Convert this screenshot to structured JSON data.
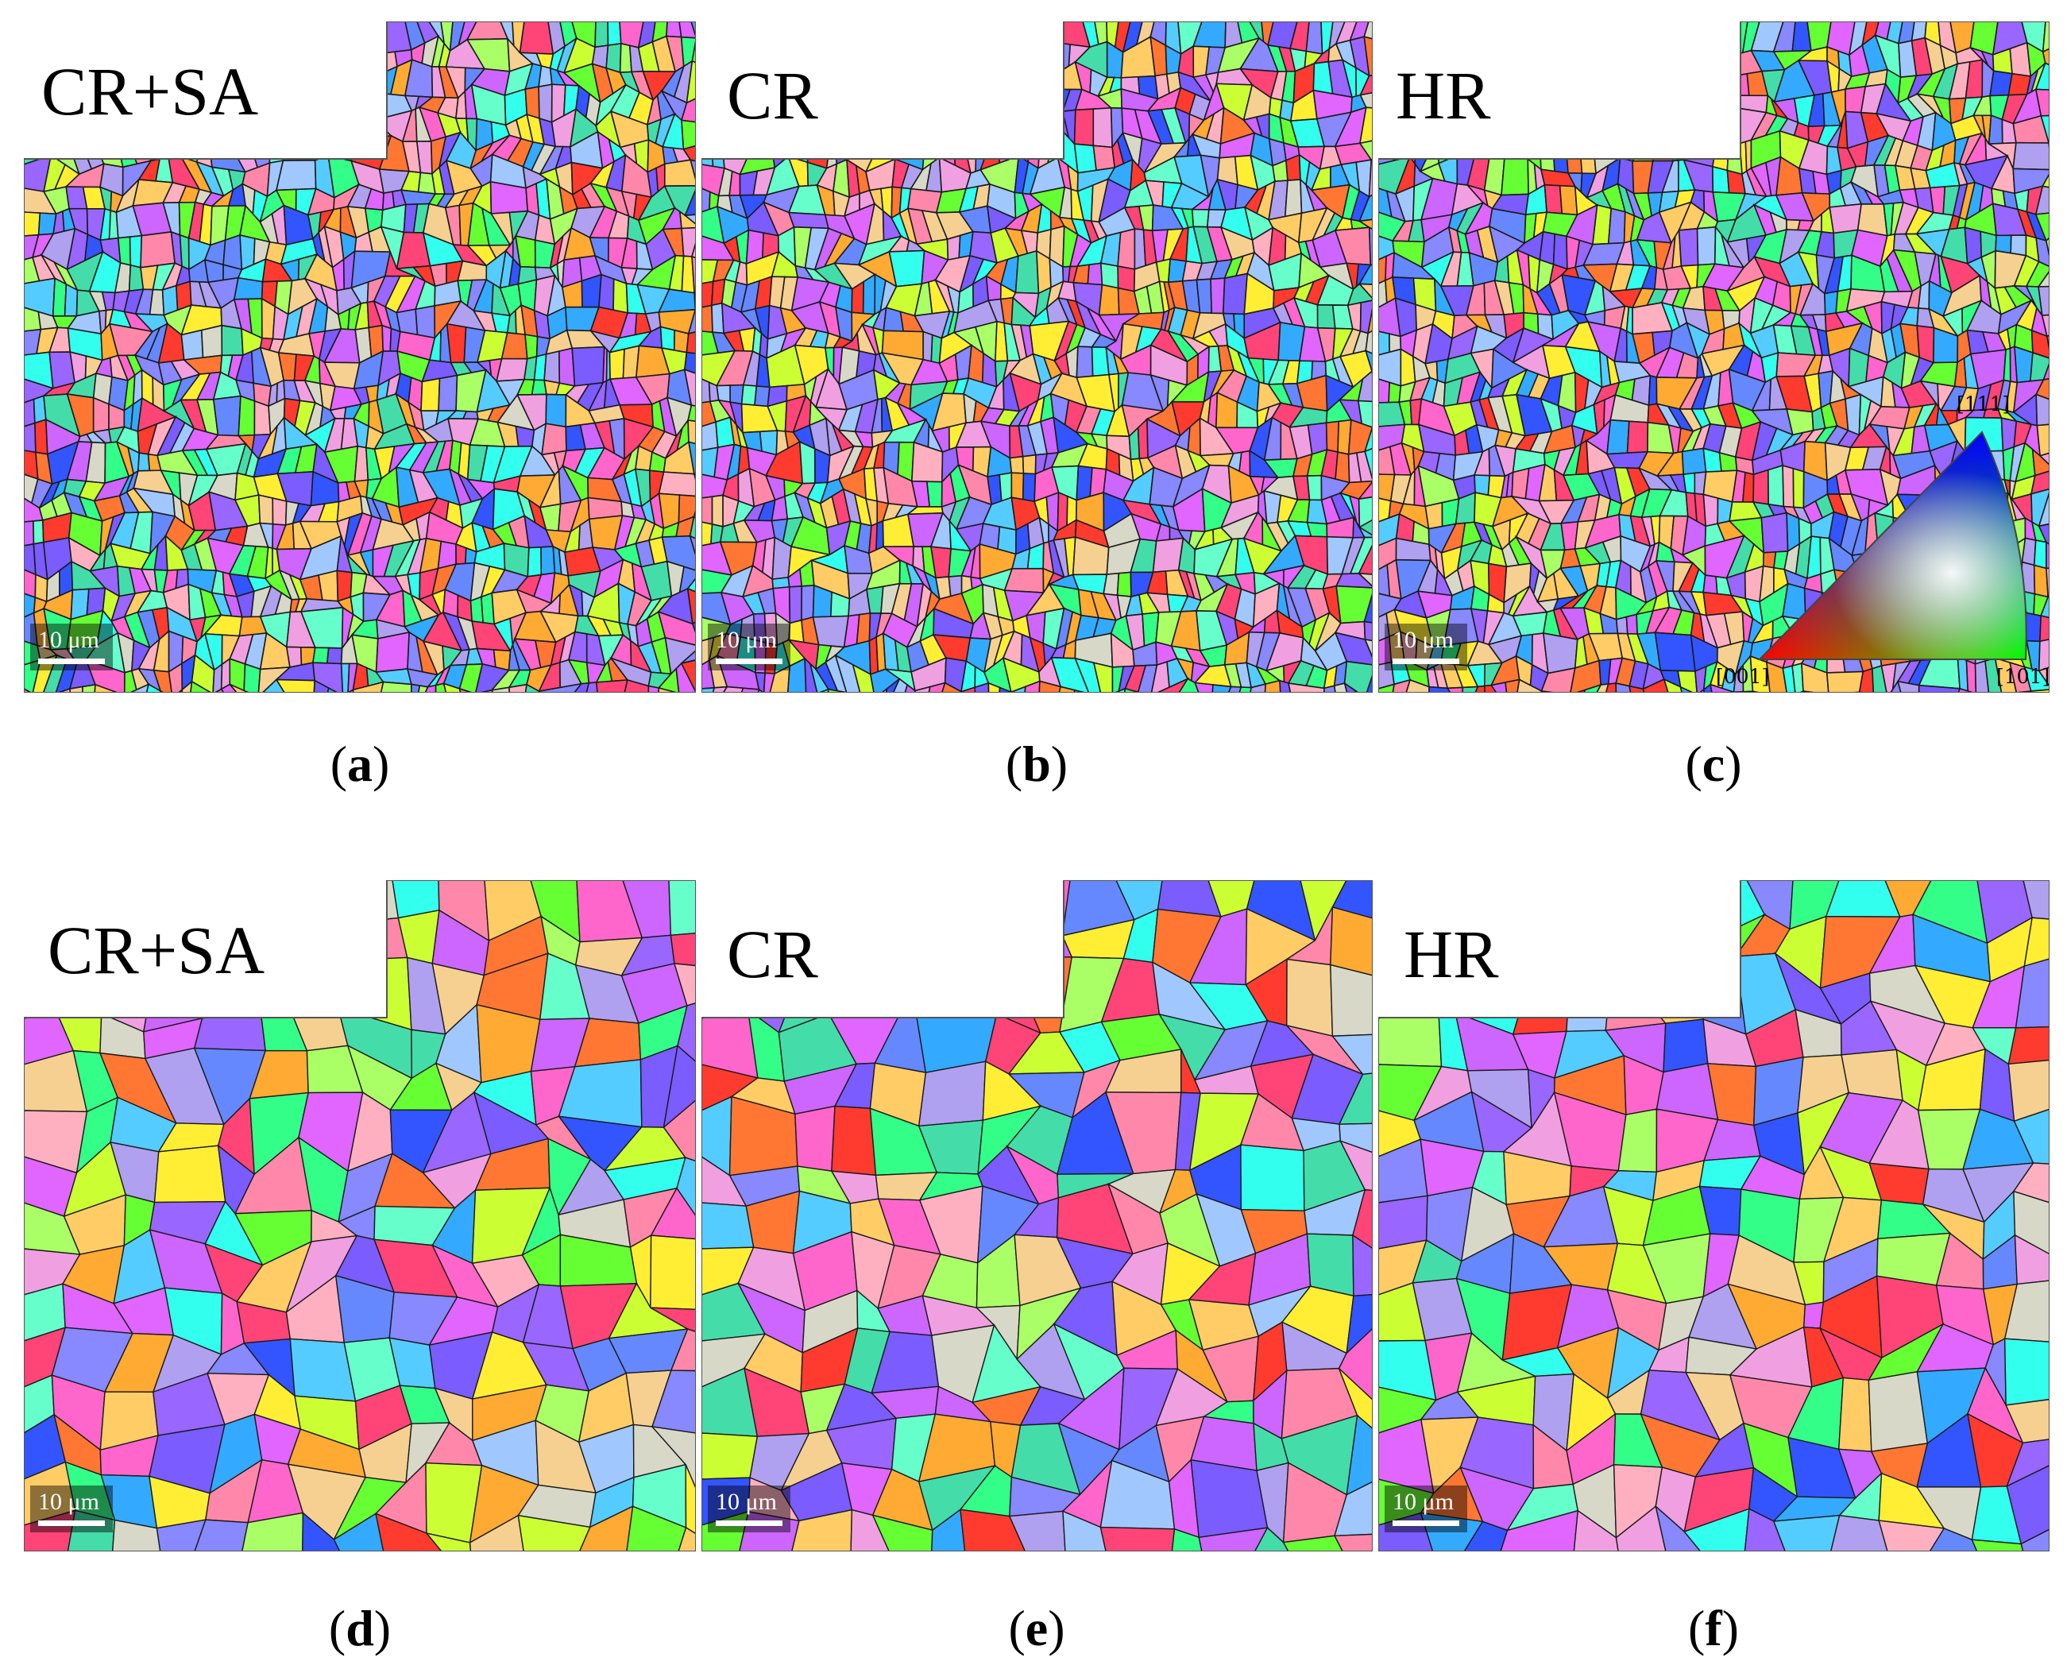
{
  "panels": [
    {
      "id": "a",
      "label": "CR+SA",
      "caption": "a",
      "scale": "10 μm"
    },
    {
      "id": "b",
      "label": "CR",
      "caption": "b",
      "scale": "10 μm"
    },
    {
      "id": "c",
      "label": "HR",
      "caption": "c",
      "scale": "10 μm"
    },
    {
      "id": "d",
      "label": "CR+SA",
      "caption": "d",
      "scale": "10 μm"
    },
    {
      "id": "e",
      "label": "CR",
      "caption": "e",
      "scale": "10 μm"
    },
    {
      "id": "f",
      "label": "HR",
      "caption": "f",
      "scale": "10 μm"
    }
  ],
  "ipf_legend": {
    "top": "[111]",
    "left": "[001]",
    "right": "[101]"
  },
  "palette": [
    "#ff3b30",
    "#ff66cc",
    "#cc66ff",
    "#7a5cff",
    "#3355ff",
    "#33aaff",
    "#33ffee",
    "#33ff88",
    "#66ff33",
    "#ccff33",
    "#ffee33",
    "#ffaa33",
    "#ff7733",
    "#ff4477",
    "#e066ff",
    "#9966ff",
    "#6688ff",
    "#55ccff",
    "#66ffcc",
    "#aaff66",
    "#f0a0e0",
    "#b0a0f0",
    "#a0c8ff",
    "#f5d090",
    "#ffb0c0",
    "#d8d8c8",
    "#8888ff",
    "#ff88aa",
    "#44ddaa",
    "#ffcc66"
  ]
}
